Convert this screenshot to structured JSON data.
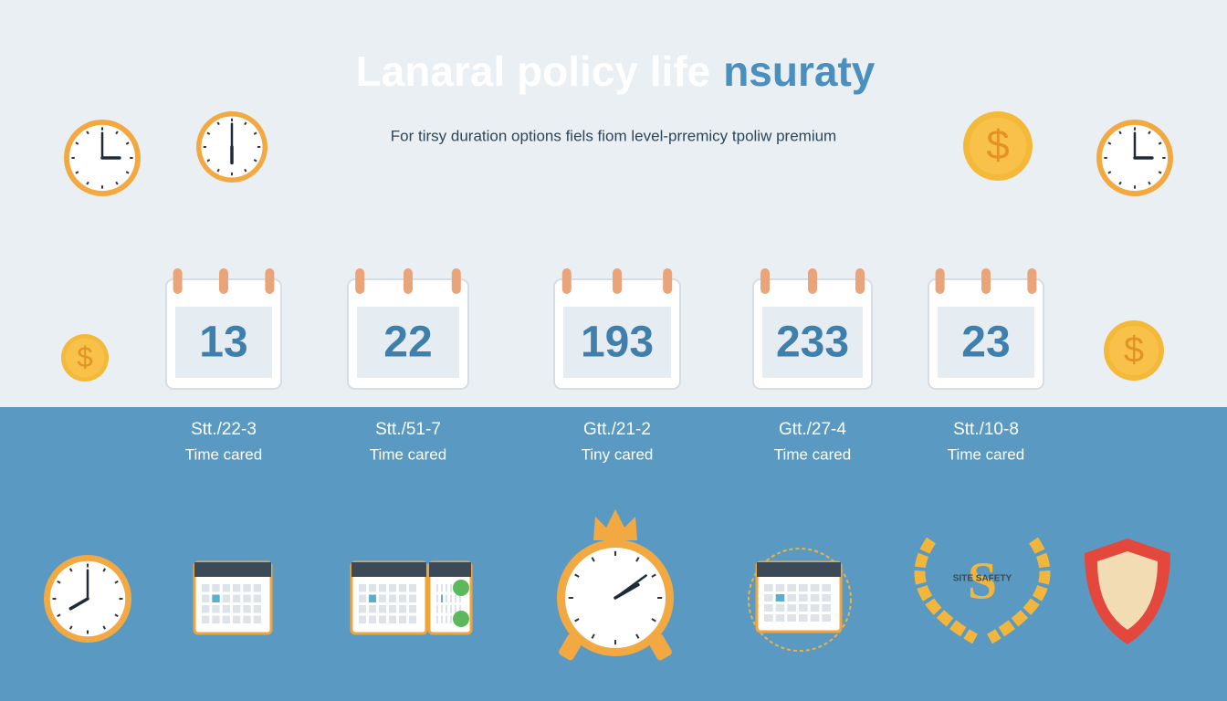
{
  "title": {
    "part1": "Lanaral policy life",
    "part2": "nsuraty"
  },
  "subtitle": "For tirsy duration options fiels fiom level-prremicy tpoliw premium",
  "coin_symbol": "$",
  "cards": [
    {
      "number": "13",
      "code": "Stt./22-3",
      "caption": "Time cared"
    },
    {
      "number": "22",
      "code": "Stt./51-7",
      "caption": "Time cared"
    },
    {
      "number": "193",
      "code": "Gtt./21-2",
      "caption": "Tiny cared"
    },
    {
      "number": "233",
      "code": "Gtt./27-4",
      "caption": "Time cared"
    },
    {
      "number": "23",
      "code": "Stt./10-8",
      "caption": "Time cared"
    }
  ],
  "wreath": {
    "letter": "S",
    "text": "SITE SAFETY"
  }
}
